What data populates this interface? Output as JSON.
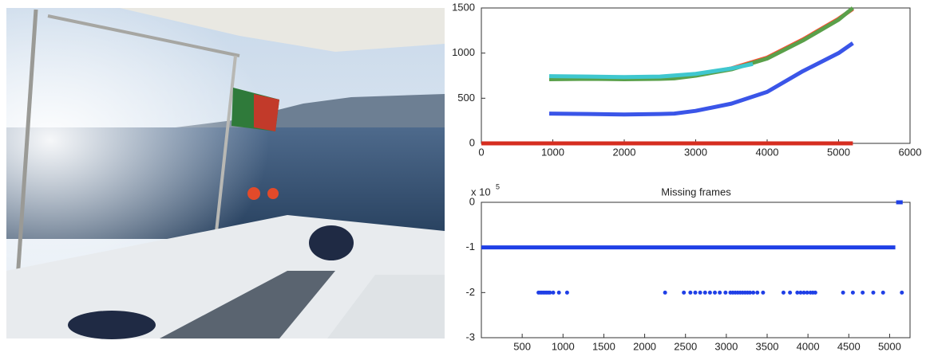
{
  "chart_data": [
    {
      "type": "line",
      "xlim": [
        0,
        6000
      ],
      "xticks": [
        0,
        1000,
        2000,
        3000,
        4000,
        5000,
        6000
      ],
      "ylim": [
        0,
        1500
      ],
      "yticks": [
        0,
        500,
        1000,
        1500
      ],
      "series": [
        {
          "color": "#d62d20",
          "x": [
            0,
            5200
          ],
          "values": [
            0,
            0
          ]
        },
        {
          "color": "#3a55e8",
          "x": [
            950,
            1500,
            2000,
            2500,
            2700,
            3000,
            3500,
            4000,
            4500,
            5000,
            5200
          ],
          "values": [
            330,
            325,
            320,
            325,
            330,
            360,
            440,
            570,
            800,
            1000,
            1110
          ]
        },
        {
          "color": "#ff4a2e",
          "x": [
            950,
            1500,
            2000,
            2500,
            2700,
            3000,
            3500,
            4000,
            4500,
            5000,
            5200
          ],
          "values": [
            720,
            725,
            720,
            725,
            730,
            760,
            830,
            950,
            1150,
            1380,
            1490
          ]
        },
        {
          "color": "#5aa04a",
          "x": [
            950,
            1500,
            2000,
            2500,
            2700,
            3000,
            3500,
            4000,
            4500,
            5000,
            5200
          ],
          "values": [
            710,
            715,
            710,
            715,
            720,
            750,
            820,
            940,
            1140,
            1370,
            1500
          ]
        },
        {
          "color": "#3fc7cf",
          "x": [
            950,
            1500,
            2000,
            2500,
            3000,
            3500,
            3800
          ],
          "values": [
            745,
            740,
            735,
            740,
            770,
            830,
            880
          ]
        }
      ]
    },
    {
      "type": "scatter",
      "title": "Missing frames",
      "y_multiplier": "x 10",
      "y_exponent": 5,
      "xlim": [
        0,
        5250
      ],
      "xticks": [
        500,
        1000,
        1500,
        2000,
        2500,
        3000,
        3500,
        4000,
        4500,
        5000
      ],
      "ylim": [
        -3,
        0
      ],
      "yticks": [
        -3,
        -2,
        -1,
        0
      ],
      "color": "#1f3fe6",
      "series": [
        {
          "style": "line",
          "x": [
            0,
            5070
          ],
          "values": [
            -1,
            -1
          ]
        },
        {
          "style": "points",
          "x": [
            700,
            720,
            740,
            760,
            780,
            800,
            820,
            840,
            880,
            950,
            1050,
            2250,
            2480,
            2560,
            2620,
            2680,
            2740,
            2800,
            2860,
            2920,
            2990,
            3050,
            3080,
            3110,
            3140,
            3170,
            3200,
            3230,
            3260,
            3290,
            3330,
            3380,
            3450,
            3700,
            3780,
            3870,
            3910,
            3950,
            3990,
            4030,
            4060,
            4090,
            4430,
            4550,
            4670,
            4800,
            4920,
            5150
          ],
          "values": [
            -2,
            -2,
            -2,
            -2,
            -2,
            -2,
            -2,
            -2,
            -2,
            -2,
            -2,
            -2,
            -2,
            -2,
            -2,
            -2,
            -2,
            -2,
            -2,
            -2,
            -2,
            -2,
            -2,
            -2,
            -2,
            -2,
            -2,
            -2,
            -2,
            -2,
            -2,
            -2,
            -2,
            -2,
            -2,
            -2,
            -2,
            -2,
            -2,
            -2,
            -2,
            -2,
            -2,
            -2,
            -2,
            -2,
            -2,
            -2
          ]
        },
        {
          "style": "line",
          "x": [
            5080,
            5160
          ],
          "values": [
            0,
            0
          ]
        }
      ]
    }
  ]
}
